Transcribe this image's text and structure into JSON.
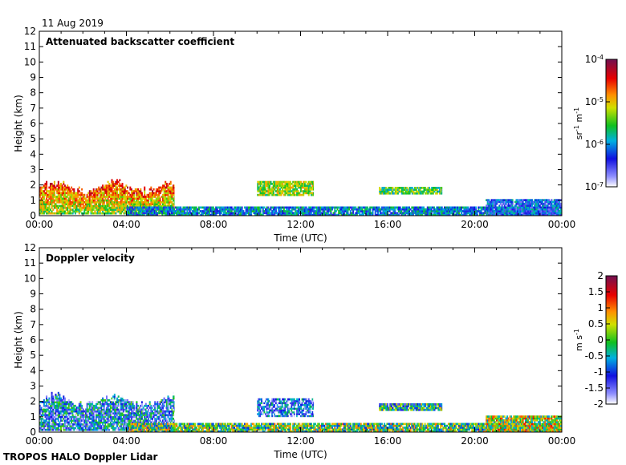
{
  "date_label": "11 Aug 2019",
  "footer": "TROPOS HALO Doppler Lidar",
  "chart_data": [
    {
      "type": "heatmap",
      "title": "Attenuated backscatter coefficient",
      "xlabel": "Time (UTC)",
      "ylabel": "Height (km)",
      "x_ticks": [
        "00:00",
        "04:00",
        "08:00",
        "12:00",
        "16:00",
        "20:00",
        "00:00"
      ],
      "xlim_hours": [
        0,
        24
      ],
      "ylim_km": [
        0,
        12
      ],
      "y_ticks": [
        0,
        1,
        2,
        3,
        4,
        5,
        6,
        7,
        8,
        9,
        10,
        11,
        12
      ],
      "colorbar": {
        "scale": "log",
        "range": [
          1e-07,
          0.0001
        ],
        "unit_label": "sr-1 m-1",
        "ticks": [
          {
            "base": "10",
            "exp": "-4",
            "value": 0.0001
          },
          {
            "base": "10",
            "exp": "-5",
            "value": 1e-05
          },
          {
            "base": "10",
            "exp": "-6",
            "value": 1e-06
          },
          {
            "base": "10",
            "exp": "-7",
            "value": 1e-07
          }
        ]
      },
      "features": [
        {
          "name": "boundary layer aerosol",
          "t_start": 0.0,
          "t_end": 6.2,
          "h_low": 0.1,
          "h_high": 2.4,
          "log_value": -5.2
        },
        {
          "name": "near-surface layer",
          "t_start": 4.0,
          "t_end": 24.0,
          "h_low": 0.0,
          "h_high": 0.5,
          "log_value": -6.0
        },
        {
          "name": "cloud layer",
          "t_start": 10.0,
          "t_end": 12.6,
          "h_low": 1.3,
          "h_high": 2.2,
          "log_value": -5.3
        },
        {
          "name": "scattered cloud",
          "t_start": 15.6,
          "t_end": 18.5,
          "h_low": 1.4,
          "h_high": 1.8,
          "log_value": -5.5
        },
        {
          "name": "evening layer",
          "t_start": 20.5,
          "t_end": 24.0,
          "h_low": 0.0,
          "h_high": 1.0,
          "log_value": -6.2
        }
      ]
    },
    {
      "type": "heatmap",
      "title": "Doppler velocity",
      "xlabel": "Time (UTC)",
      "ylabel": "Height (km)",
      "x_ticks": [
        "00:00",
        "04:00",
        "08:00",
        "12:00",
        "16:00",
        "20:00",
        "00:00"
      ],
      "xlim_hours": [
        0,
        24
      ],
      "ylim_km": [
        0,
        12
      ],
      "y_ticks": [
        0,
        1,
        2,
        3,
        4,
        5,
        6,
        7,
        8,
        9,
        10,
        11,
        12
      ],
      "colorbar": {
        "scale": "linear",
        "range": [
          -2,
          2
        ],
        "unit_label": "m s-1",
        "ticks": [
          "2",
          "1.5",
          "1",
          "0.5",
          "0",
          "-0.5",
          "-1",
          "-1.5",
          "-2"
        ]
      },
      "features": [
        {
          "name": "convective boundary layer",
          "t_start": 0.0,
          "t_end": 6.2,
          "h_low": 0.1,
          "h_high": 2.6,
          "value_mean": -0.9
        },
        {
          "name": "near-surface layer",
          "t_start": 4.0,
          "t_end": 24.0,
          "h_low": 0.0,
          "h_high": 0.5,
          "value_mean": 0.0
        },
        {
          "name": "cloud layer",
          "t_start": 10.0,
          "t_end": 12.6,
          "h_low": 1.0,
          "h_high": 2.2,
          "value_mean": -1.2
        },
        {
          "name": "scattered cloud",
          "t_start": 15.6,
          "t_end": 18.5,
          "h_low": 1.4,
          "h_high": 1.8,
          "value_mean": -0.4
        },
        {
          "name": "evening layer",
          "t_start": 20.5,
          "t_end": 24.0,
          "h_low": 0.0,
          "h_high": 1.0,
          "value_mean": 0.3
        }
      ]
    }
  ]
}
